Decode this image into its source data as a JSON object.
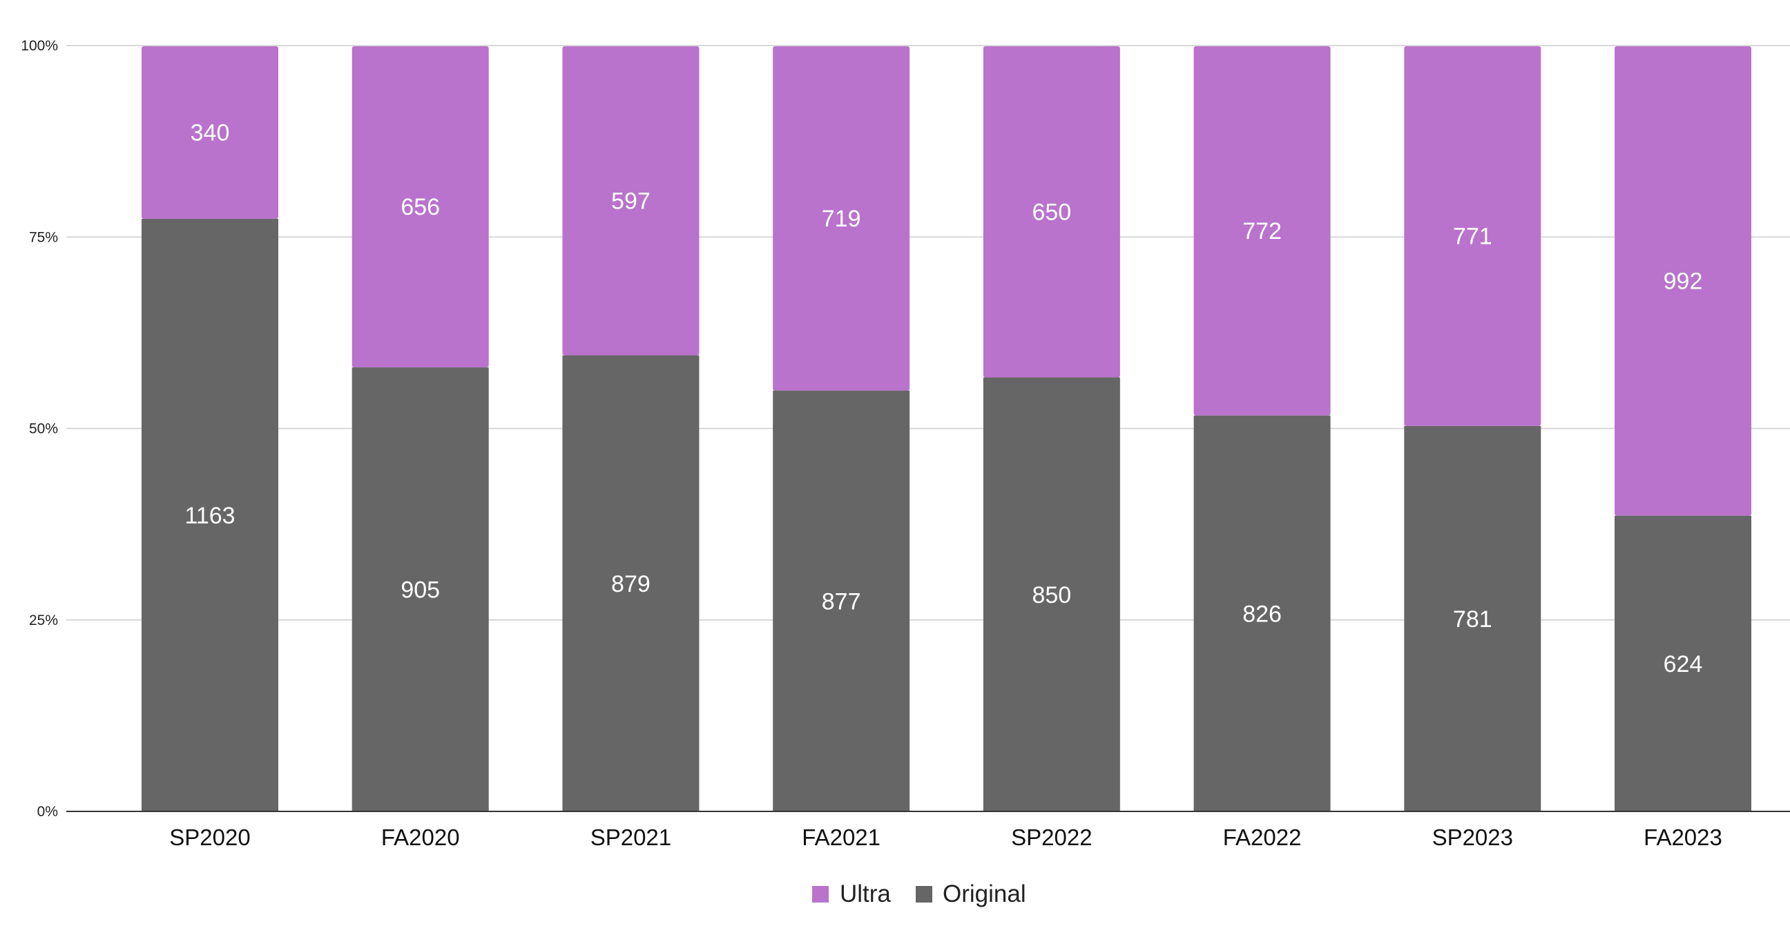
{
  "chart_data": {
    "type": "bar",
    "stacked": true,
    "normalized": true,
    "categories": [
      "SP2020",
      "FA2020",
      "SP2021",
      "FA2021",
      "SP2022",
      "FA2022",
      "SP2023",
      "FA2023"
    ],
    "series": [
      {
        "name": "Original",
        "color": "#666666",
        "values": [
          1163,
          905,
          879,
          877,
          850,
          826,
          781,
          624
        ]
      },
      {
        "name": "Ultra",
        "color": "#b973cc",
        "values": [
          340,
          656,
          597,
          719,
          650,
          772,
          771,
          992
        ]
      }
    ],
    "yticks": [
      "0%",
      "25%",
      "50%",
      "75%",
      "100%"
    ],
    "ylim": [
      0,
      100
    ],
    "grid": true,
    "legend": {
      "placement": "bottom",
      "entries": [
        "Ultra",
        "Original"
      ]
    }
  }
}
